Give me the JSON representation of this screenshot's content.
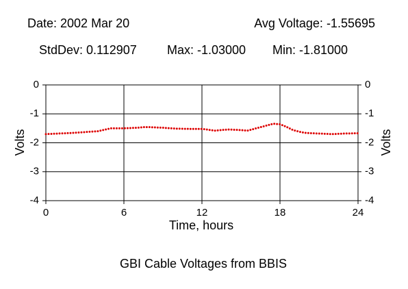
{
  "chart_data": {
    "type": "line",
    "title": "GBI Cable Voltages from BBIS",
    "annotations": [
      "Date: 2002 Mar 20",
      "Avg Voltage: -1.55695",
      "StdDev: 0.112907",
      "Max: -1.03000",
      "Min: -1.81000"
    ],
    "x_label": "Time, hours",
    "y_label": "Volts",
    "x": [
      0,
      1,
      2,
      3,
      4,
      5,
      6,
      7,
      7.5,
      8,
      9,
      10,
      11,
      12,
      12.5,
      13,
      13.5,
      14,
      15,
      15.5,
      16,
      17,
      17.5,
      18,
      18.5,
      19,
      19.5,
      20,
      21,
      22,
      23,
      24
    ],
    "series": [
      {
        "color": "#dd0000",
        "values": [
          -1.7,
          -1.68,
          -1.66,
          -1.63,
          -1.6,
          -1.5,
          -1.5,
          -1.48,
          -1.46,
          -1.46,
          -1.48,
          -1.51,
          -1.52,
          -1.52,
          -1.55,
          -1.58,
          -1.56,
          -1.54,
          -1.56,
          -1.58,
          -1.52,
          -1.4,
          -1.34,
          -1.36,
          -1.45,
          -1.56,
          -1.62,
          -1.66,
          -1.68,
          -1.7,
          -1.68,
          -1.67
        ]
      }
    ],
    "xlim": [
      0,
      24
    ],
    "xticks": [
      0,
      6,
      12,
      18,
      24
    ],
    "ylim": [
      -4,
      0
    ],
    "yticks": [
      0,
      -1,
      -2,
      -3,
      -4
    ],
    "grid": true
  }
}
